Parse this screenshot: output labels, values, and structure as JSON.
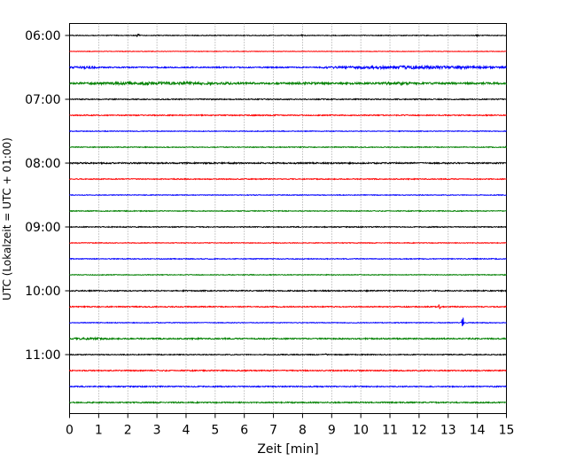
{
  "chart_data": {
    "type": "line",
    "title": "",
    "xlabel": "Zeit  [min]",
    "ylabel": "UTC (Lokalzeit = UTC + 01:00)",
    "xlim": [
      0,
      15
    ],
    "x_ticks": [
      0,
      1,
      2,
      3,
      4,
      5,
      6,
      7,
      8,
      9,
      10,
      11,
      12,
      13,
      14,
      15
    ],
    "x_tick_labels": [
      "0",
      "1",
      "2",
      "3",
      "4",
      "5",
      "6",
      "7",
      "8",
      "9",
      "10",
      "11",
      "12",
      "13",
      "14",
      "15"
    ],
    "y_tick_labels": [
      "06:00",
      "07:00",
      "08:00",
      "09:00",
      "10:00",
      "11:00"
    ],
    "grid": "vertical dotted at each minute",
    "trace_minutes": 15,
    "trace_colors": [
      "#000000",
      "#ff0000",
      "#0000ff",
      "#008000"
    ],
    "traces": [
      {
        "start": "06:00",
        "color": "#000000",
        "level": 0.4,
        "events": [
          {
            "t": 0.3,
            "amp": 0.8
          },
          {
            "t": 1.3,
            "amp": 0.7
          },
          {
            "t": 2.35,
            "amp": 1.8
          },
          {
            "t": 8.0,
            "amp": 1.0
          },
          {
            "t": 14.0,
            "amp": 1.2
          }
        ]
      },
      {
        "start": "06:15",
        "color": "#ff0000",
        "level": 0.3,
        "events": [
          {
            "t": 4.0,
            "amp": 0.5
          }
        ]
      },
      {
        "start": "06:30",
        "color": "#0000ff",
        "level": 0.65,
        "bursts": [
          {
            "from": 0.0,
            "to": 1.0,
            "amp": 1.4
          },
          {
            "from": 8.7,
            "to": 15.0,
            "amp": 1.7
          }
        ]
      },
      {
        "start": "06:45",
        "color": "#008000",
        "level": 1.0,
        "bursts": [
          {
            "from": 0.0,
            "to": 6.5,
            "amp": 1.6
          },
          {
            "from": 10.5,
            "to": 12.0,
            "amp": 1.6
          }
        ]
      },
      {
        "start": "07:00",
        "color": "#000000",
        "level": 0.55,
        "events": [
          {
            "t": 9.0,
            "amp": 1.2
          }
        ]
      },
      {
        "start": "07:15",
        "color": "#ff0000",
        "level": 0.55,
        "events": [
          {
            "t": 3.0,
            "amp": 0.9
          }
        ]
      },
      {
        "start": "07:30",
        "color": "#0000ff",
        "level": 0.4,
        "events": []
      },
      {
        "start": "07:45",
        "color": "#008000",
        "level": 0.45,
        "events": [
          {
            "t": 15.0,
            "amp": 1.0
          }
        ]
      },
      {
        "start": "08:00",
        "color": "#000000",
        "level": 0.75,
        "events": [
          {
            "t": 0.3,
            "amp": 1.2
          },
          {
            "t": 3.2,
            "amp": 1.1
          },
          {
            "t": 6.5,
            "amp": 1.1
          },
          {
            "t": 7.75,
            "amp": 1.2
          }
        ]
      },
      {
        "start": "08:15",
        "color": "#ff0000",
        "level": 0.5,
        "events": []
      },
      {
        "start": "08:30",
        "color": "#0000ff",
        "level": 0.4,
        "events": []
      },
      {
        "start": "08:45",
        "color": "#008000",
        "level": 0.45,
        "events": []
      },
      {
        "start": "09:00",
        "color": "#000000",
        "level": 0.5,
        "events": [
          {
            "t": 12.3,
            "amp": 1.0
          }
        ]
      },
      {
        "start": "09:15",
        "color": "#ff0000",
        "level": 0.4,
        "events": []
      },
      {
        "start": "09:30",
        "color": "#0000ff",
        "level": 0.45,
        "events": []
      },
      {
        "start": "09:45",
        "color": "#008000",
        "level": 0.4,
        "events": [
          {
            "t": 6.2,
            "amp": 0.9
          }
        ]
      },
      {
        "start": "10:00",
        "color": "#000000",
        "level": 0.6,
        "events": [
          {
            "t": 0.2,
            "amp": 1.0
          },
          {
            "t": 6.2,
            "amp": 0.9
          }
        ]
      },
      {
        "start": "10:15",
        "color": "#ff0000",
        "level": 0.55,
        "events": [
          {
            "t": 12.7,
            "amp": 4.5
          }
        ]
      },
      {
        "start": "10:30",
        "color": "#0000ff",
        "level": 0.4,
        "events": [
          {
            "t": 13.5,
            "amp": 8.5
          },
          {
            "t": 3.0,
            "amp": 0.8
          }
        ]
      },
      {
        "start": "10:45",
        "color": "#008000",
        "level": 0.7,
        "bursts": [
          {
            "from": 0.0,
            "to": 1.5,
            "amp": 1.3
          }
        ]
      },
      {
        "start": "11:00",
        "color": "#000000",
        "level": 0.5,
        "events": [
          {
            "t": 8.8,
            "amp": 1.0
          }
        ]
      },
      {
        "start": "11:15",
        "color": "#ff0000",
        "level": 0.6,
        "events": [
          {
            "t": 1.0,
            "amp": 0.9
          },
          {
            "t": 3.3,
            "amp": 0.9
          }
        ]
      },
      {
        "start": "11:30",
        "color": "#0000ff",
        "level": 0.6,
        "events": [
          {
            "t": 4.4,
            "amp": 1.0
          },
          {
            "t": 9.8,
            "amp": 0.9
          }
        ]
      },
      {
        "start": "11:45",
        "color": "#008000",
        "level": 0.65,
        "events": [
          {
            "t": 0.8,
            "amp": 1.0
          }
        ]
      }
    ]
  }
}
